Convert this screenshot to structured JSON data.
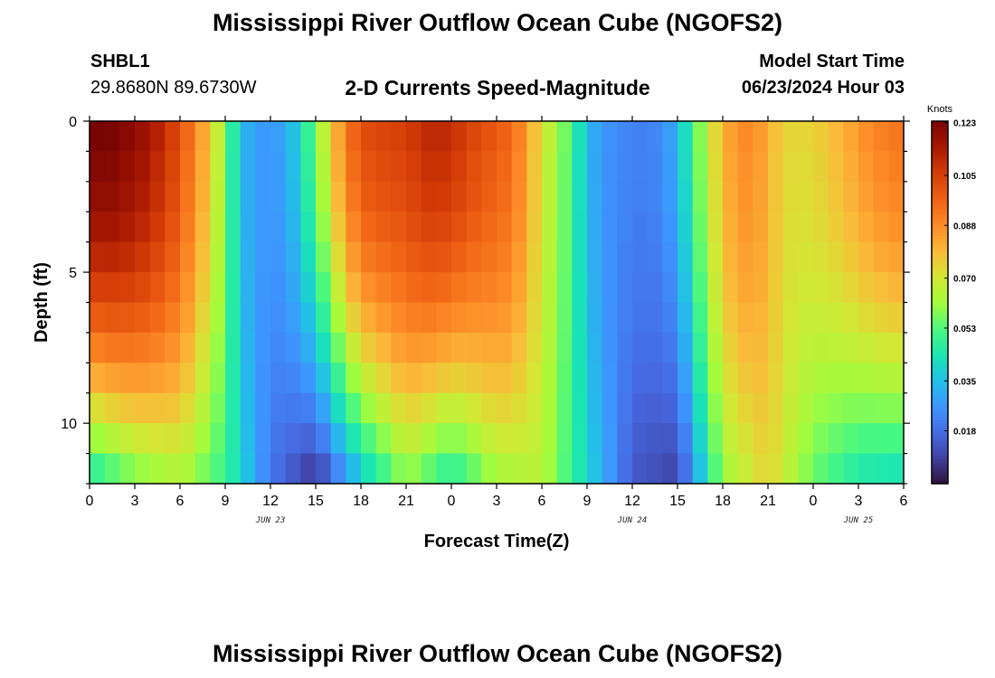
{
  "header": {
    "title": "Mississippi River Outflow Ocean Cube (NGOFS2)",
    "station_id": "SHBL1",
    "station_coords": "29.8680N  89.6730W",
    "subtitle": "2-D Currents Speed-Magnitude",
    "model_start_label": "Model Start Time",
    "model_start_value": "06/23/2024 Hour 03"
  },
  "footer": {
    "title": "Mississippi River Outflow Ocean Cube (NGOFS2)"
  },
  "chart_data": {
    "type": "heatmap",
    "xlabel": "Forecast Time(Z)",
    "ylabel": "Depth (ft)",
    "x_hours": [
      0,
      54
    ],
    "x_tick_labels": [
      "0",
      "3",
      "6",
      "9",
      "12",
      "15",
      "18",
      "21",
      "0",
      "3",
      "6",
      "9",
      "12",
      "15",
      "18",
      "21",
      "0",
      "3",
      "6"
    ],
    "date_labels": [
      {
        "hour": 12,
        "label": "JUN 23"
      },
      {
        "hour": 36,
        "label": "JUN 24"
      },
      {
        "hour": 51,
        "label": "JUN 25"
      }
    ],
    "ylim": [
      0,
      12
    ],
    "y_inverted": true,
    "y_tick_labels": [
      "0",
      "5",
      "10"
    ],
    "y_ticks": [
      0,
      5,
      10
    ],
    "depth_levels": 12,
    "colorbar": {
      "unit": "Knots",
      "min": 0.0,
      "max": 0.1235,
      "ticks": [
        "0.123",
        "0.105",
        "0.088",
        "0.070",
        "0.053",
        "0.035",
        "0.018"
      ],
      "tick_values": [
        0.123,
        0.105,
        0.088,
        0.07,
        0.053,
        0.035,
        0.018
      ],
      "colormap": "turbo"
    },
    "surface_speed_knots": [
      [
        0,
        0.122
      ],
      [
        1,
        0.123
      ],
      [
        2,
        0.121
      ],
      [
        3,
        0.118
      ],
      [
        4,
        0.114
      ],
      [
        5,
        0.108
      ],
      [
        6,
        0.1
      ],
      [
        7,
        0.088
      ],
      [
        8,
        0.076
      ],
      [
        9,
        0.058
      ],
      [
        10,
        0.034
      ],
      [
        11,
        0.028
      ],
      [
        12,
        0.026
      ],
      [
        13,
        0.03
      ],
      [
        14,
        0.04
      ],
      [
        15,
        0.056
      ],
      [
        16,
        0.074
      ],
      [
        17,
        0.09
      ],
      [
        18,
        0.1
      ],
      [
        19,
        0.102
      ],
      [
        20,
        0.103
      ],
      [
        21,
        0.104
      ],
      [
        22,
        0.108
      ],
      [
        23,
        0.11
      ],
      [
        24,
        0.108
      ],
      [
        25,
        0.104
      ],
      [
        26,
        0.1
      ],
      [
        27,
        0.098
      ],
      [
        28,
        0.094
      ],
      [
        29,
        0.084
      ],
      [
        30,
        0.07
      ],
      [
        31,
        0.062
      ],
      [
        32,
        0.05
      ],
      [
        33,
        0.034
      ],
      [
        34,
        0.026
      ],
      [
        35,
        0.024
      ],
      [
        36,
        0.022
      ],
      [
        37,
        0.022
      ],
      [
        38,
        0.024
      ],
      [
        39,
        0.032
      ],
      [
        40,
        0.05
      ],
      [
        41,
        0.066
      ],
      [
        42,
        0.08
      ],
      [
        43,
        0.086
      ],
      [
        44,
        0.088
      ],
      [
        45,
        0.08
      ],
      [
        46,
        0.074
      ],
      [
        47,
        0.072
      ],
      [
        48,
        0.074
      ],
      [
        49,
        0.076
      ],
      [
        50,
        0.08
      ],
      [
        51,
        0.084
      ],
      [
        52,
        0.088
      ],
      [
        53,
        0.09
      ],
      [
        54,
        0.092
      ]
    ],
    "near_bottom_speed_knots": [
      [
        0,
        0.048
      ],
      [
        3,
        0.06
      ],
      [
        6,
        0.066
      ],
      [
        9,
        0.05
      ],
      [
        12,
        0.02
      ],
      [
        15,
        0.008
      ],
      [
        18,
        0.04
      ],
      [
        21,
        0.062
      ],
      [
        24,
        0.048
      ],
      [
        27,
        0.064
      ],
      [
        30,
        0.066
      ],
      [
        33,
        0.04
      ],
      [
        36,
        0.014
      ],
      [
        39,
        0.01
      ],
      [
        42,
        0.062
      ],
      [
        45,
        0.075
      ],
      [
        48,
        0.056
      ],
      [
        51,
        0.046
      ],
      [
        54,
        0.044
      ]
    ]
  }
}
